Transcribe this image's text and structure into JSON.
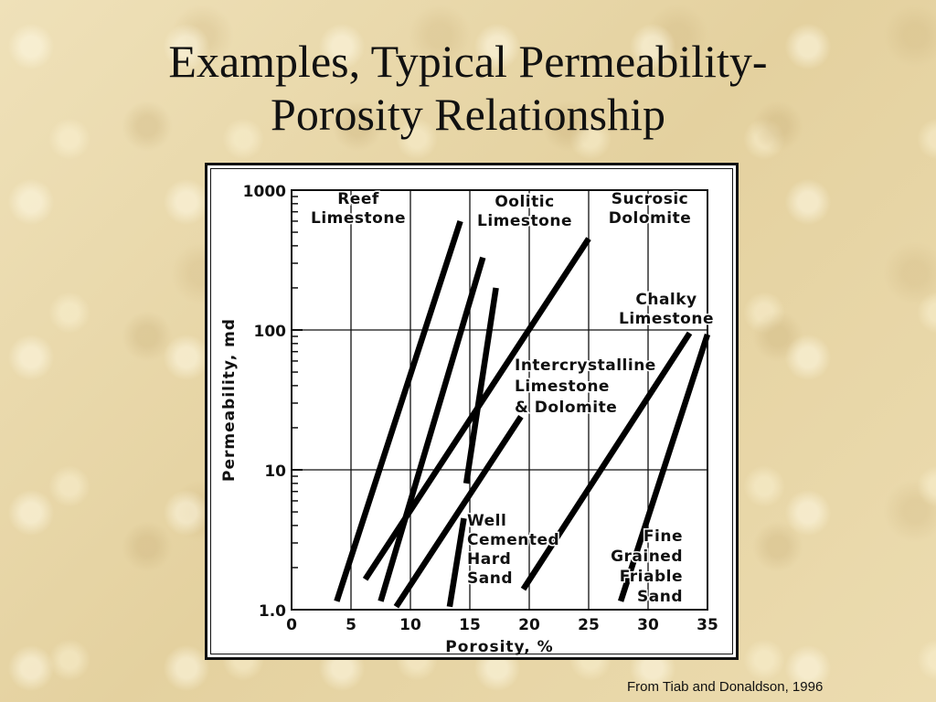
{
  "slide": {
    "title_line1": "Examples, Typical Permeability-",
    "title_line2": "Porosity Relationship",
    "credit": "From Tiab and Donaldson, 1996"
  },
  "chart_data": {
    "type": "line",
    "xlabel": "Porosity, %",
    "ylabel": "Permeability, md",
    "xlim": [
      0,
      35
    ],
    "ylim": [
      1,
      1000
    ],
    "yscale": "log",
    "grid": true,
    "xticks": [
      0,
      5,
      10,
      15,
      20,
      25,
      30,
      35
    ],
    "xtick_labels": [
      "0",
      "5",
      "10",
      "15",
      "20",
      "25",
      "30",
      "35"
    ],
    "yticks": [
      1,
      10,
      100,
      1000
    ],
    "ytick_labels": [
      "1.0",
      "10",
      "100",
      "1000"
    ],
    "series": [
      {
        "name": "Reef Limestone",
        "x": [
          3.8,
          14.2
        ],
        "y": [
          1.15,
          600
        ]
      },
      {
        "name": "Oolitic Limestone",
        "x": [
          6.2,
          25.0
        ],
        "y": [
          1.65,
          450
        ]
      },
      {
        "name": "Sucrosic Dolomite",
        "x": [
          7.5,
          16.1
        ],
        "y": [
          1.15,
          330
        ]
      },
      {
        "name": "Sucrosic Dolomite",
        "x": [
          14.7,
          17.2
        ],
        "y": [
          8.0,
          200
        ]
      },
      {
        "name": "Intercrystalline Limestone & Dolomite",
        "x": [
          8.8,
          19.3
        ],
        "y": [
          1.05,
          24
        ]
      },
      {
        "name": "Chalky Limestone",
        "x": [
          19.5,
          33.5
        ],
        "y": [
          1.4,
          95
        ]
      },
      {
        "name": "Fine Grained Friable Sand",
        "x": [
          27.7,
          35.0
        ],
        "y": [
          1.15,
          93
        ]
      },
      {
        "name": "Well Cemented Hard Sand",
        "x": [
          13.3,
          14.5
        ],
        "y": [
          1.05,
          4.5
        ]
      }
    ],
    "annotations": [
      {
        "key": "reef",
        "lines": [
          "Reef",
          "Limestone"
        ]
      },
      {
        "key": "oolitic",
        "lines": [
          "Oolitic",
          "Limestone"
        ]
      },
      {
        "key": "sucrosic",
        "lines": [
          "Sucrosic",
          "Dolomite"
        ]
      },
      {
        "key": "chalky",
        "lines": [
          "Chalky",
          "Limestone"
        ]
      },
      {
        "key": "intercrystalline",
        "lines": [
          "Intercrystalline",
          "Limestone",
          "& Dolomite"
        ]
      },
      {
        "key": "wellcemented",
        "lines": [
          "Well",
          "Cemented",
          "Hard",
          "Sand"
        ]
      },
      {
        "key": "finegrained",
        "lines": [
          "Fine",
          "Grained",
          "Friable",
          "Sand"
        ]
      }
    ]
  }
}
